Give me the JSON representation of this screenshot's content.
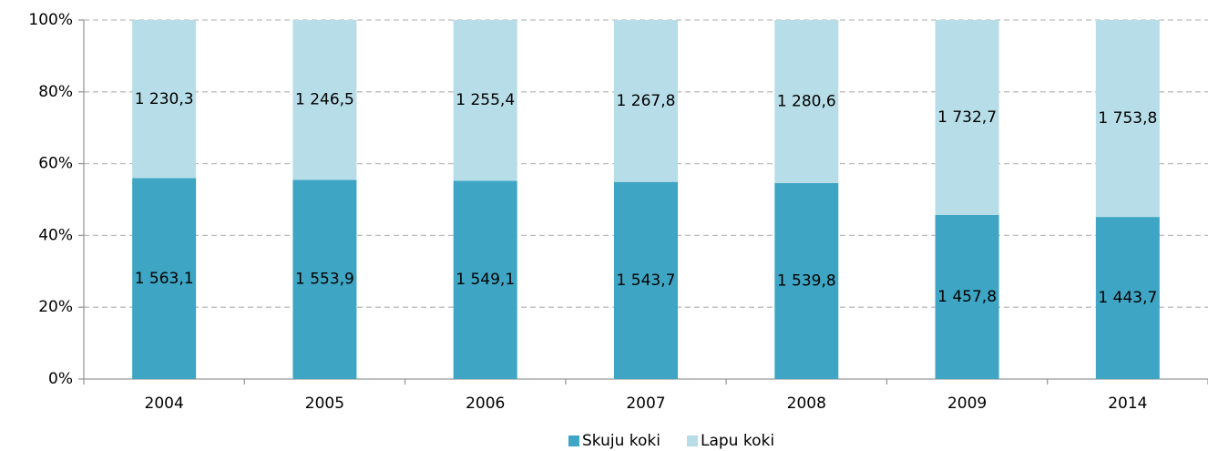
{
  "chart_data": {
    "type": "bar",
    "stacked": "percent",
    "categories": [
      "2004",
      "2005",
      "2006",
      "2007",
      "2008",
      "2009",
      "2014"
    ],
    "series": [
      {
        "name": "Skuju koki",
        "color": "#3ea6c4",
        "values": [
          1563.1,
          1553.9,
          1549.1,
          1543.7,
          1539.8,
          1457.8,
          1443.7
        ],
        "value_labels": [
          "1 563,1",
          "1 553,9",
          "1 549,1",
          "1 543,7",
          "1 539,8",
          "1 457,8",
          "1 443,7"
        ]
      },
      {
        "name": "Lapu koki",
        "color": "#b7dde8",
        "values": [
          1230.3,
          1246.5,
          1255.4,
          1267.8,
          1280.6,
          1732.7,
          1753.8
        ],
        "value_labels": [
          "1 230,3",
          "1 246,5",
          "1 255,4",
          "1 267,8",
          "1 280,6",
          "1 732,7",
          "1 753,8"
        ]
      }
    ],
    "ylim": [
      0,
      100
    ],
    "yticks": [
      {
        "value": 0,
        "label": "0%"
      },
      {
        "value": 20,
        "label": "20%"
      },
      {
        "value": 40,
        "label": "40%"
      },
      {
        "value": 60,
        "label": "60%"
      },
      {
        "value": 80,
        "label": "80%"
      },
      {
        "value": 100,
        "label": "100%"
      }
    ],
    "grid": true,
    "legend": "bottom"
  }
}
